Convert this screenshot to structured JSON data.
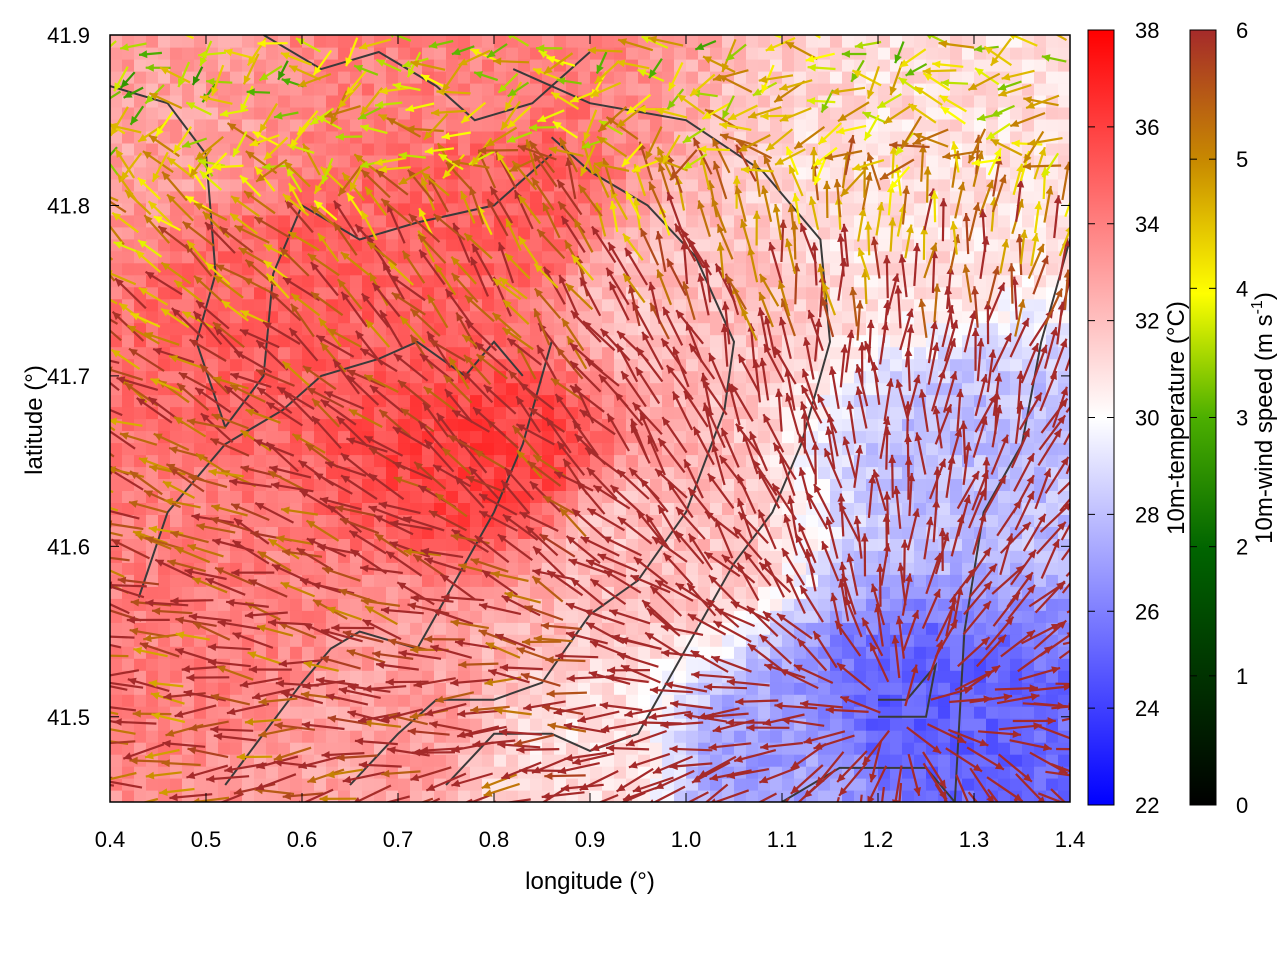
{
  "chart_data": {
    "type": "heatmap",
    "title": "",
    "xlabel": "longitude (°)",
    "ylabel": "latitude (°)",
    "xlim": [
      0.4,
      1.4
    ],
    "ylim": [
      41.45,
      41.9
    ],
    "x_ticks": [
      "0.4",
      "0.5",
      "0.6",
      "0.7",
      "0.8",
      "0.9",
      "1.0",
      "1.1",
      "1.2",
      "1.3",
      "1.4"
    ],
    "y_ticks": [
      "41.5",
      "41.6",
      "41.7",
      "41.8",
      "41.9"
    ],
    "temperature_colorbar": {
      "label": "10m-temperature (°C)",
      "range": [
        22,
        38
      ],
      "ticks": [
        "22",
        "24",
        "26",
        "28",
        "30",
        "32",
        "34",
        "36",
        "38"
      ],
      "colors": [
        "#0000ff",
        "#ffffff",
        "#ff0000"
      ]
    },
    "wind_colorbar": {
      "label_main": "10m-wind speed (m s",
      "label_sup": "-1",
      "label_end": ")",
      "range": [
        0,
        6
      ],
      "ticks": [
        "0",
        "1",
        "2",
        "3",
        "4",
        "5",
        "6"
      ],
      "colors": [
        "#000000",
        "#006400",
        "#4caf00",
        "#ffff00",
        "#c88a00",
        "#a52a2a"
      ]
    },
    "temperature_field": {
      "description_values_degC": [
        {
          "lon": 0.45,
          "lat": 41.85,
          "t": 33
        },
        {
          "lon": 0.6,
          "lat": 41.75,
          "t": 35
        },
        {
          "lon": 0.8,
          "lat": 41.8,
          "t": 35
        },
        {
          "lon": 0.8,
          "lat": 41.65,
          "t": 36
        },
        {
          "lon": 0.5,
          "lat": 41.55,
          "t": 34
        },
        {
          "lon": 0.7,
          "lat": 41.5,
          "t": 33
        },
        {
          "lon": 1.0,
          "lat": 41.75,
          "t": 32
        },
        {
          "lon": 1.2,
          "lat": 41.8,
          "t": 31
        },
        {
          "lon": 1.35,
          "lat": 41.85,
          "t": 31
        },
        {
          "lon": 1.3,
          "lat": 41.65,
          "t": 28
        },
        {
          "lon": 1.25,
          "lat": 41.5,
          "t": 25
        },
        {
          "lon": 1.1,
          "lat": 41.47,
          "t": 27
        },
        {
          "lon": 0.95,
          "lat": 41.6,
          "t": 32
        },
        {
          "lon": 0.88,
          "lat": 41.47,
          "t": 31
        },
        {
          "lon": 0.72,
          "lat": 41.88,
          "t": 34
        }
      ]
    }
  }
}
